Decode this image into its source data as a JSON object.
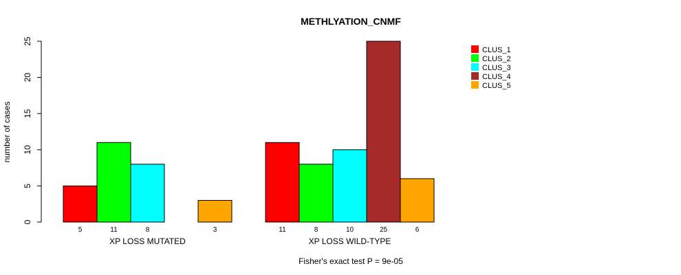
{
  "chart_data": {
    "type": "bar",
    "title": "METHLYATION_CNMF",
    "xlabel": "",
    "ylabel": "number of cases",
    "ylim": [
      0,
      25
    ],
    "yticks": [
      0,
      5,
      10,
      15,
      20,
      25
    ],
    "categories": [
      "XP LOSS MUTATED",
      "XP LOSS WILD-TYPE"
    ],
    "series": [
      {
        "name": "CLUS_1",
        "color": "#ff0000",
        "values": [
          5,
          11
        ]
      },
      {
        "name": "CLUS_2",
        "color": "#00ff00",
        "values": [
          11,
          8
        ]
      },
      {
        "name": "CLUS_3",
        "color": "#00ffff",
        "values": [
          8,
          10
        ]
      },
      {
        "name": "CLUS_4",
        "color": "#a52a2a",
        "values": [
          0,
          25
        ]
      },
      {
        "name": "CLUS_5",
        "color": "#ffa500",
        "values": [
          3,
          6
        ]
      }
    ],
    "bar_labels": [
      [
        "5",
        "11",
        "8",
        "",
        "3"
      ],
      [
        "11",
        "8",
        "10",
        "25",
        "6"
      ]
    ],
    "legend_position": "top-right",
    "footnote": "Fisher's exact test P = 9e-05"
  }
}
